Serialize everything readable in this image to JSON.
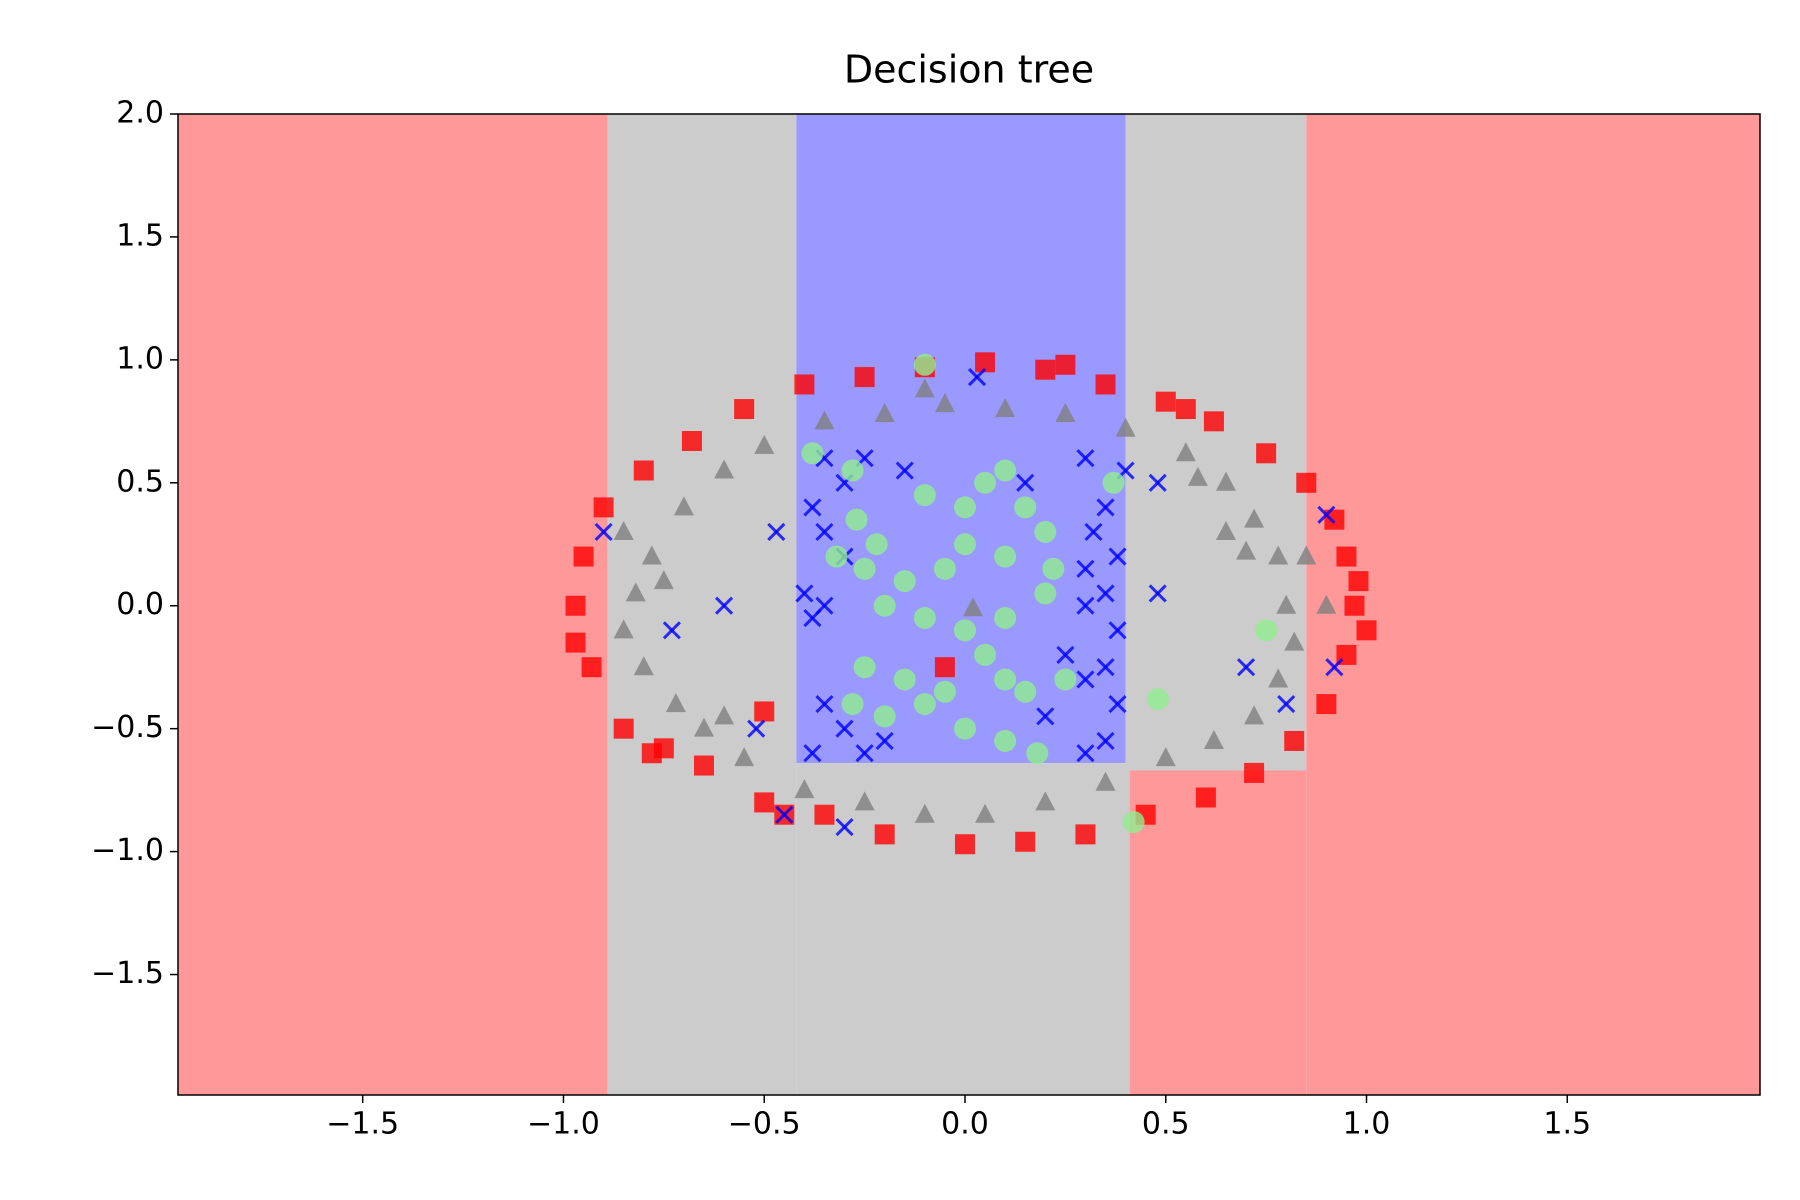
{
  "chart_data": {
    "type": "scatter",
    "title": "Decision tree",
    "xlim": [
      -1.96,
      1.98
    ],
    "ylim": [
      -1.99,
      2.0
    ],
    "xticks": [
      {
        "value": -1.5,
        "label": "−1.5"
      },
      {
        "value": -1.0,
        "label": "−1.0"
      },
      {
        "value": -0.5,
        "label": "−0.5"
      },
      {
        "value": 0,
        "label": "0.0"
      },
      {
        "value": 0.5,
        "label": "0.5"
      },
      {
        "value": 1.0,
        "label": "1.0"
      },
      {
        "value": 1.5,
        "label": "1.5"
      }
    ],
    "yticks": [
      {
        "value": -1.5,
        "label": "−1.5"
      },
      {
        "value": -1.0,
        "label": "−1.0"
      },
      {
        "value": -0.5,
        "label": "−0.5"
      },
      {
        "value": 0,
        "label": "0.0"
      },
      {
        "value": 0.5,
        "label": "0.5"
      },
      {
        "value": 1.0,
        "label": "1.0"
      },
      {
        "value": 1.5,
        "label": "1.5"
      },
      {
        "value": 2.0,
        "label": "2.0"
      }
    ],
    "regions": [
      {
        "x": [
          -1.96,
          -0.89
        ],
        "y": [
          -1.99,
          2.0
        ],
        "color": "#ff9999"
      },
      {
        "x": [
          -0.89,
          -0.42
        ],
        "y": [
          -1.99,
          2.0
        ],
        "color": "#cccccc"
      },
      {
        "x": [
          -0.42,
          0.4
        ],
        "y": [
          -0.64,
          2.0
        ],
        "color": "#9999ff"
      },
      {
        "x": [
          -0.42,
          0.41
        ],
        "y": [
          -1.99,
          -0.64
        ],
        "color": "#cccccc"
      },
      {
        "x": [
          0.4,
          0.85
        ],
        "y": [
          -0.67,
          2.0
        ],
        "color": "#cccccc"
      },
      {
        "x": [
          0.41,
          0.85
        ],
        "y": [
          -1.99,
          -0.67
        ],
        "color": "#ff9999"
      },
      {
        "x": [
          0.85,
          1.98
        ],
        "y": [
          -1.99,
          2.0
        ],
        "color": "#ff9999"
      }
    ],
    "series": [
      {
        "marker": "square",
        "color": "#ff0000",
        "x": [
          0.97,
          0.95,
          0.92,
          0.85,
          0.75,
          0.62,
          0.5,
          0.35,
          0.2,
          0.05,
          -0.1,
          -0.25,
          -0.4,
          -0.55,
          -0.68,
          -0.8,
          -0.9,
          -0.95,
          -0.97,
          -0.97,
          -0.93,
          -0.85,
          -0.75,
          -0.65,
          -0.5,
          -0.35,
          -0.2,
          0.0,
          0.15,
          0.3,
          0.45,
          0.6,
          0.72,
          0.82,
          0.9,
          0.95,
          0.98,
          1.0,
          -0.45,
          0.25,
          -0.5,
          -0.05,
          0.55,
          -0.78
        ],
        "y": [
          0.0,
          0.2,
          0.35,
          0.5,
          0.62,
          0.75,
          0.83,
          0.9,
          0.96,
          0.99,
          0.97,
          0.93,
          0.9,
          0.8,
          0.67,
          0.55,
          0.4,
          0.2,
          0.0,
          -0.15,
          -0.25,
          -0.5,
          -0.58,
          -0.65,
          -0.8,
          -0.85,
          -0.93,
          -0.97,
          -0.96,
          -0.93,
          -0.85,
          -0.78,
          -0.68,
          -0.55,
          -0.4,
          -0.2,
          0.1,
          -0.1,
          -0.85,
          0.98,
          -0.43,
          -0.25,
          0.8,
          -0.6
        ]
      },
      {
        "marker": "triangle",
        "color": "#808080",
        "x": [
          0.8,
          0.78,
          0.72,
          0.65,
          0.55,
          0.4,
          0.25,
          0.1,
          -0.05,
          -0.2,
          -0.35,
          -0.5,
          -0.6,
          -0.7,
          -0.78,
          -0.82,
          -0.85,
          -0.8,
          -0.72,
          -0.65,
          -0.55,
          -0.4,
          -0.25,
          -0.1,
          0.05,
          0.2,
          0.35,
          0.5,
          0.62,
          0.72,
          0.78,
          0.82,
          0.9,
          0.85,
          0.7,
          -0.85,
          -0.75,
          -0.6,
          0.65,
          0.58,
          0.02,
          -0.1
        ],
        "y": [
          0.0,
          0.2,
          0.35,
          0.5,
          0.62,
          0.72,
          0.78,
          0.8,
          0.82,
          0.78,
          0.75,
          0.65,
          0.55,
          0.4,
          0.2,
          0.05,
          -0.1,
          -0.25,
          -0.4,
          -0.5,
          -0.62,
          -0.75,
          -0.8,
          -0.85,
          -0.85,
          -0.8,
          -0.72,
          -0.62,
          -0.55,
          -0.45,
          -0.3,
          -0.15,
          0.0,
          0.2,
          0.22,
          0.3,
          0.1,
          -0.45,
          0.3,
          0.52,
          -0.01,
          0.88
        ]
      },
      {
        "marker": "x",
        "color": "#0000ff",
        "x": [
          0.03,
          -0.9,
          0.9,
          -0.52,
          -0.6,
          -0.73,
          -0.3,
          -0.45,
          -0.35,
          -0.3,
          -0.38,
          -0.35,
          -0.4,
          -0.35,
          -0.38,
          -0.35,
          -0.3,
          -0.38,
          -0.25,
          -0.2,
          -0.3,
          -0.25,
          -0.15,
          0.3,
          0.35,
          0.32,
          0.38,
          0.3,
          0.35,
          0.3,
          0.38,
          0.35,
          0.3,
          0.38,
          0.35,
          0.3,
          0.2,
          0.25,
          0.15,
          0.4,
          0.48,
          0.48,
          -0.47,
          0.7,
          0.8,
          0.92
        ],
        "y": [
          0.93,
          0.3,
          0.37,
          -0.5,
          0.0,
          -0.1,
          -0.9,
          -0.85,
          0.6,
          0.5,
          0.4,
          0.3,
          0.05,
          0.0,
          -0.05,
          -0.4,
          -0.5,
          -0.6,
          -0.6,
          -0.55,
          0.2,
          0.6,
          0.55,
          0.6,
          0.4,
          0.3,
          0.2,
          0.15,
          0.05,
          0.0,
          -0.1,
          -0.25,
          -0.3,
          -0.4,
          -0.55,
          -0.6,
          -0.45,
          -0.2,
          0.5,
          0.55,
          0.05,
          0.5,
          0.3,
          -0.25,
          -0.4,
          -0.25
        ]
      },
      {
        "marker": "circle",
        "color": "#90ee90",
        "x": [
          -0.1,
          0.42,
          -0.38,
          -0.28,
          0.37,
          0.48,
          0.75,
          -0.27,
          -0.22,
          -0.1,
          0.0,
          0.05,
          0.1,
          0.15,
          0.2,
          0.22,
          0.1,
          0.0,
          -0.05,
          -0.15,
          -0.25,
          -0.2,
          -0.1,
          0.0,
          0.1,
          0.2,
          0.05,
          0.1,
          0.15,
          -0.1,
          -0.05,
          -0.25,
          -0.28,
          -0.2,
          0.0,
          0.1,
          0.18,
          -0.15,
          0.25,
          -0.32
        ],
        "y": [
          0.98,
          -0.88,
          0.62,
          0.55,
          0.5,
          -0.38,
          -0.1,
          0.35,
          0.25,
          0.45,
          0.4,
          0.5,
          0.55,
          0.4,
          0.3,
          0.15,
          0.2,
          0.25,
          0.15,
          0.1,
          0.15,
          0.0,
          -0.05,
          -0.1,
          -0.05,
          0.05,
          -0.2,
          -0.3,
          -0.35,
          -0.4,
          -0.35,
          -0.25,
          -0.4,
          -0.45,
          -0.5,
          -0.55,
          -0.6,
          -0.3,
          -0.3,
          0.2
        ]
      }
    ]
  }
}
